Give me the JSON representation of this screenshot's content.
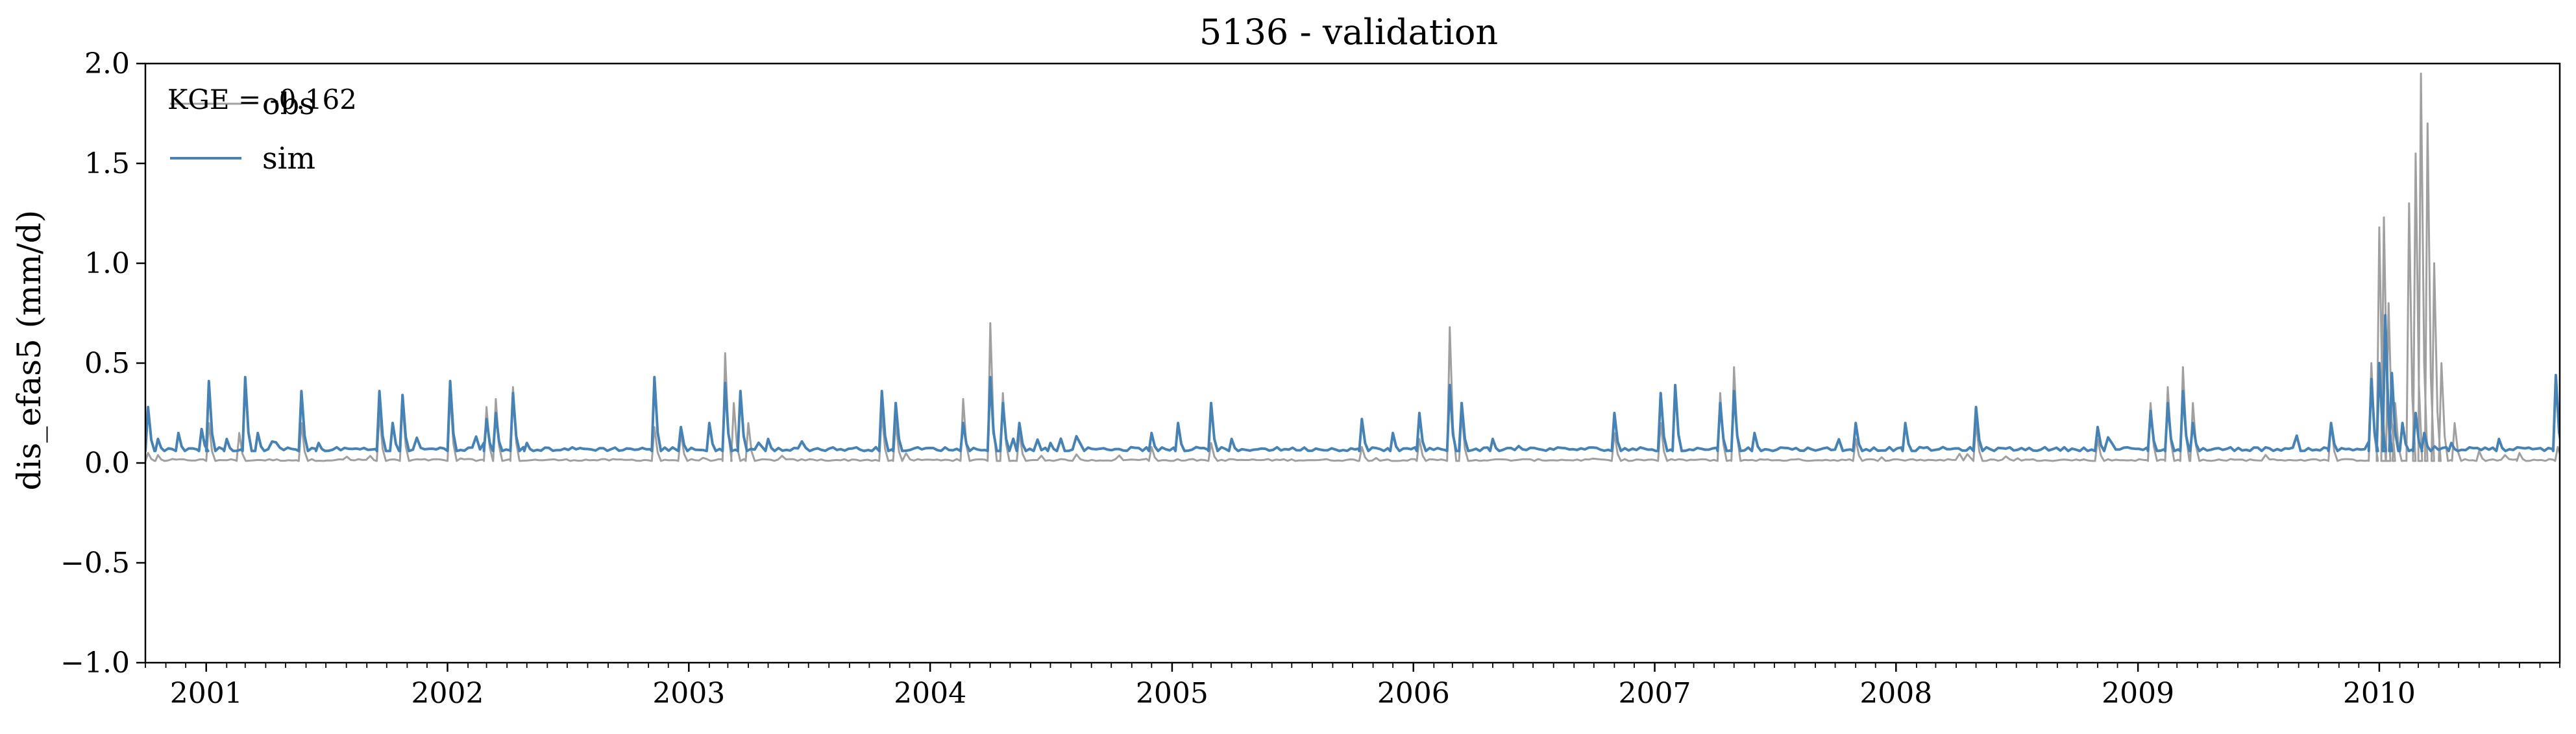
{
  "chart_data": {
    "type": "line",
    "title": "5136 - validation",
    "xlabel": "",
    "ylabel": "dis_efas5 (mm/d)",
    "xlim": [
      "2000-10-01",
      "2010-10-01"
    ],
    "ylim": [
      -1.0,
      2.0
    ],
    "x_ticks": [
      "2001",
      "2002",
      "2003",
      "2004",
      "2005",
      "2006",
      "2007",
      "2008",
      "2009",
      "2010"
    ],
    "y_ticks": [
      "−1.0",
      "−0.5",
      "0.0",
      "0.5",
      "1.0",
      "1.5",
      "2.0"
    ],
    "grid": false,
    "legend_position": "top-left",
    "annotation": "KGE = -0.162",
    "series": [
      {
        "name": "obs",
        "color": "#a0a0a0",
        "baseline": 0.01,
        "points": [
          [
            "2000-10-05",
            0.05
          ],
          [
            "2000-10-20",
            0.04
          ],
          [
            "2001-01-05",
            0.2
          ],
          [
            "2001-02-20",
            0.15
          ],
          [
            "2001-05-25",
            0.2
          ],
          [
            "2001-09-20",
            0.25
          ],
          [
            "2001-10-25",
            0.3
          ],
          [
            "2002-01-05",
            0.35
          ],
          [
            "2002-03-01",
            0.28
          ],
          [
            "2002-03-15",
            0.32
          ],
          [
            "2002-04-10",
            0.38
          ],
          [
            "2002-11-10",
            0.18
          ],
          [
            "2002-12-20",
            0.15
          ],
          [
            "2003-02-25",
            0.55
          ],
          [
            "2003-03-10",
            0.3
          ],
          [
            "2003-04-01",
            0.2
          ],
          [
            "2003-10-20",
            0.25
          ],
          [
            "2003-11-10",
            0.2
          ],
          [
            "2004-02-20",
            0.32
          ],
          [
            "2004-04-01",
            0.7
          ],
          [
            "2004-04-20",
            0.35
          ],
          [
            "2004-05-15",
            0.15
          ],
          [
            "2004-12-01",
            0.08
          ],
          [
            "2005-03-01",
            0.1
          ],
          [
            "2005-10-15",
            0.08
          ],
          [
            "2006-01-10",
            0.12
          ],
          [
            "2006-02-25",
            0.68
          ],
          [
            "2006-03-15",
            0.25
          ],
          [
            "2006-11-01",
            0.15
          ],
          [
            "2007-01-10",
            0.2
          ],
          [
            "2007-04-10",
            0.35
          ],
          [
            "2007-05-01",
            0.48
          ],
          [
            "2007-11-01",
            0.12
          ],
          [
            "2008-05-01",
            0.2
          ],
          [
            "2008-11-01",
            0.12
          ],
          [
            "2009-01-20",
            0.3
          ],
          [
            "2009-02-15",
            0.38
          ],
          [
            "2009-03-10",
            0.48
          ],
          [
            "2009-03-25",
            0.3
          ],
          [
            "2009-10-20",
            0.2
          ],
          [
            "2009-12-20",
            0.5
          ],
          [
            "2010-01-01",
            1.18
          ],
          [
            "2010-01-08",
            1.23
          ],
          [
            "2010-01-15",
            0.8
          ],
          [
            "2010-01-25",
            0.3
          ],
          [
            "2010-02-15",
            1.3
          ],
          [
            "2010-02-25",
            1.55
          ],
          [
            "2010-03-05",
            1.95
          ],
          [
            "2010-03-15",
            1.7
          ],
          [
            "2010-03-25",
            1.0
          ],
          [
            "2010-04-05",
            0.5
          ],
          [
            "2010-04-25",
            0.2
          ],
          [
            "2010-06-01",
            0.06
          ],
          [
            "2010-08-01",
            0.05
          ],
          [
            "2010-09-28",
            0.08
          ]
        ]
      },
      {
        "name": "sim",
        "color": "#4682b4",
        "baseline": 0.06,
        "points": [
          [
            "2000-10-05",
            0.28
          ],
          [
            "2000-10-20",
            0.12
          ],
          [
            "2000-11-20",
            0.15
          ],
          [
            "2000-12-25",
            0.17
          ],
          [
            "2001-01-05",
            0.41
          ],
          [
            "2001-02-01",
            0.12
          ],
          [
            "2001-03-01",
            0.43
          ],
          [
            "2001-03-20",
            0.15
          ],
          [
            "2001-05-25",
            0.36
          ],
          [
            "2001-06-20",
            0.1
          ],
          [
            "2001-09-20",
            0.36
          ],
          [
            "2001-10-10",
            0.2
          ],
          [
            "2001-10-25",
            0.34
          ],
          [
            "2002-01-05",
            0.41
          ],
          [
            "2002-03-01",
            0.22
          ],
          [
            "2002-03-15",
            0.25
          ],
          [
            "2002-04-10",
            0.35
          ],
          [
            "2002-05-01",
            0.1
          ],
          [
            "2002-11-10",
            0.43
          ],
          [
            "2002-12-20",
            0.18
          ],
          [
            "2003-02-01",
            0.2
          ],
          [
            "2003-02-25",
            0.4
          ],
          [
            "2003-03-20",
            0.36
          ],
          [
            "2003-05-01",
            0.12
          ],
          [
            "2003-10-20",
            0.36
          ],
          [
            "2003-11-10",
            0.3
          ],
          [
            "2004-02-20",
            0.2
          ],
          [
            "2004-04-01",
            0.43
          ],
          [
            "2004-04-20",
            0.3
          ],
          [
            "2004-05-15",
            0.2
          ],
          [
            "2004-07-01",
            0.1
          ],
          [
            "2004-12-01",
            0.15
          ],
          [
            "2005-01-10",
            0.2
          ],
          [
            "2005-03-01",
            0.3
          ],
          [
            "2005-04-01",
            0.12
          ],
          [
            "2005-10-15",
            0.22
          ],
          [
            "2005-12-01",
            0.15
          ],
          [
            "2006-01-10",
            0.25
          ],
          [
            "2006-02-25",
            0.39
          ],
          [
            "2006-03-15",
            0.3
          ],
          [
            "2006-05-01",
            0.12
          ],
          [
            "2006-11-01",
            0.25
          ],
          [
            "2007-01-10",
            0.35
          ],
          [
            "2007-02-01",
            0.39
          ],
          [
            "2007-04-10",
            0.3
          ],
          [
            "2007-05-01",
            0.36
          ],
          [
            "2007-06-01",
            0.15
          ],
          [
            "2007-11-01",
            0.2
          ],
          [
            "2008-01-15",
            0.2
          ],
          [
            "2008-05-01",
            0.28
          ],
          [
            "2008-11-01",
            0.18
          ],
          [
            "2009-01-20",
            0.26
          ],
          [
            "2009-02-15",
            0.3
          ],
          [
            "2009-03-10",
            0.36
          ],
          [
            "2009-03-25",
            0.2
          ],
          [
            "2009-10-20",
            0.2
          ],
          [
            "2009-12-20",
            0.42
          ],
          [
            "2010-01-01",
            0.5
          ],
          [
            "2010-01-10",
            0.74
          ],
          [
            "2010-01-20",
            0.45
          ],
          [
            "2010-02-05",
            0.2
          ],
          [
            "2010-02-25",
            0.25
          ],
          [
            "2010-03-10",
            0.15
          ],
          [
            "2010-04-20",
            0.1
          ],
          [
            "2010-07-01",
            0.12
          ],
          [
            "2010-09-25",
            0.44
          ]
        ]
      }
    ]
  }
}
